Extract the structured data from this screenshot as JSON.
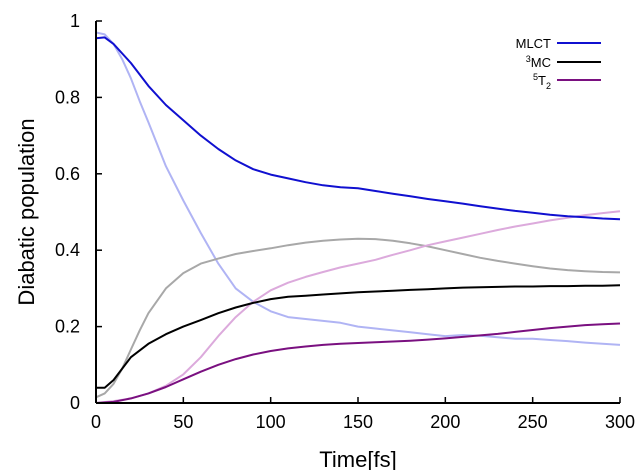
{
  "chart_data": {
    "type": "line",
    "xlabel": "Time[fs]",
    "ylabel": "Diabatic population",
    "xlim": [
      0,
      300
    ],
    "ylim": [
      0,
      1
    ],
    "xticks": [
      0,
      50,
      100,
      150,
      200,
      250,
      300
    ],
    "yticks": [
      0,
      0.2,
      0.4,
      0.6,
      0.8,
      1
    ],
    "ytick_labels": [
      "0",
      "0.2",
      "0.4",
      "0.6",
      "0.8",
      "1"
    ],
    "grid": false,
    "legend_position": "top-right",
    "legend": [
      {
        "main": "MLCT",
        "sup": "",
        "sub": "",
        "color": "#1010d0"
      },
      {
        "main": "MC",
        "sup": "3",
        "sub": "",
        "color": "#000000"
      },
      {
        "main": "T",
        "sup": "5",
        "sub": "2",
        "color": "#7a1080"
      }
    ],
    "series": [
      {
        "color": "#1010d0",
        "width": 2,
        "x": [
          0,
          5,
          10,
          20,
          30,
          40,
          50,
          60,
          70,
          80,
          90,
          100,
          110,
          120,
          130,
          140,
          150,
          160,
          170,
          180,
          190,
          200,
          210,
          220,
          230,
          240,
          250,
          260,
          270,
          280,
          290,
          300
        ],
        "y": [
          0.955,
          0.957,
          0.94,
          0.89,
          0.83,
          0.78,
          0.74,
          0.7,
          0.665,
          0.635,
          0.612,
          0.598,
          0.588,
          0.578,
          0.57,
          0.565,
          0.562,
          0.555,
          0.548,
          0.541,
          0.534,
          0.528,
          0.522,
          0.515,
          0.509,
          0.503,
          0.498,
          0.493,
          0.489,
          0.486,
          0.483,
          0.481
        ]
      },
      {
        "color": "#000000",
        "width": 2,
        "x": [
          0,
          5,
          10,
          15,
          20,
          30,
          40,
          50,
          60,
          70,
          80,
          90,
          100,
          110,
          120,
          130,
          140,
          150,
          160,
          170,
          180,
          190,
          200,
          210,
          220,
          230,
          240,
          250,
          260,
          270,
          280,
          290,
          300
        ],
        "y": [
          0.04,
          0.04,
          0.06,
          0.09,
          0.12,
          0.155,
          0.18,
          0.2,
          0.217,
          0.235,
          0.25,
          0.262,
          0.272,
          0.278,
          0.281,
          0.284,
          0.287,
          0.29,
          0.292,
          0.294,
          0.296,
          0.298,
          0.3,
          0.302,
          0.303,
          0.304,
          0.305,
          0.305,
          0.306,
          0.306,
          0.307,
          0.307,
          0.308
        ]
      },
      {
        "color": "#7a1080",
        "width": 2,
        "x": [
          0,
          10,
          20,
          30,
          40,
          50,
          60,
          70,
          80,
          90,
          100,
          110,
          120,
          130,
          140,
          150,
          160,
          170,
          180,
          190,
          200,
          210,
          220,
          230,
          240,
          250,
          260,
          270,
          280,
          290,
          300
        ],
        "y": [
          0.0,
          0.003,
          0.012,
          0.025,
          0.042,
          0.062,
          0.082,
          0.1,
          0.115,
          0.127,
          0.136,
          0.143,
          0.148,
          0.152,
          0.155,
          0.157,
          0.159,
          0.161,
          0.163,
          0.166,
          0.169,
          0.173,
          0.177,
          0.181,
          0.186,
          0.191,
          0.196,
          0.2,
          0.204,
          0.206,
          0.208
        ]
      },
      {
        "color": "#b0b4f4",
        "width": 2,
        "x": [
          0,
          5,
          10,
          15,
          20,
          25,
          30,
          40,
          50,
          60,
          70,
          80,
          90,
          100,
          110,
          120,
          130,
          140,
          150,
          160,
          170,
          180,
          190,
          200,
          210,
          220,
          230,
          240,
          250,
          260,
          270,
          280,
          290,
          300
        ],
        "y": [
          0.97,
          0.965,
          0.94,
          0.9,
          0.85,
          0.79,
          0.735,
          0.62,
          0.53,
          0.445,
          0.365,
          0.3,
          0.265,
          0.24,
          0.225,
          0.22,
          0.215,
          0.21,
          0.2,
          0.195,
          0.19,
          0.185,
          0.18,
          0.175,
          0.178,
          0.176,
          0.172,
          0.168,
          0.168,
          0.165,
          0.162,
          0.158,
          0.155,
          0.152
        ]
      },
      {
        "color": "#a8a8a8",
        "width": 2,
        "x": [
          0,
          5,
          10,
          15,
          20,
          25,
          30,
          40,
          50,
          60,
          70,
          80,
          90,
          100,
          110,
          120,
          130,
          140,
          150,
          160,
          170,
          180,
          190,
          200,
          210,
          220,
          230,
          240,
          250,
          260,
          270,
          280,
          290,
          300
        ],
        "y": [
          0.015,
          0.025,
          0.05,
          0.09,
          0.14,
          0.19,
          0.235,
          0.3,
          0.34,
          0.365,
          0.378,
          0.39,
          0.398,
          0.405,
          0.413,
          0.42,
          0.425,
          0.428,
          0.43,
          0.429,
          0.425,
          0.418,
          0.41,
          0.4,
          0.39,
          0.38,
          0.372,
          0.365,
          0.358,
          0.352,
          0.348,
          0.345,
          0.343,
          0.342
        ]
      },
      {
        "color": "#dcaadc",
        "width": 2,
        "x": [
          0,
          10,
          20,
          30,
          40,
          50,
          60,
          70,
          80,
          90,
          100,
          110,
          120,
          130,
          140,
          150,
          160,
          170,
          180,
          190,
          200,
          210,
          220,
          230,
          240,
          250,
          260,
          270,
          280,
          290,
          300
        ],
        "y": [
          0.0,
          0.005,
          0.012,
          0.025,
          0.045,
          0.075,
          0.12,
          0.175,
          0.225,
          0.265,
          0.295,
          0.315,
          0.33,
          0.343,
          0.355,
          0.365,
          0.375,
          0.388,
          0.4,
          0.413,
          0.423,
          0.433,
          0.443,
          0.453,
          0.462,
          0.47,
          0.478,
          0.485,
          0.492,
          0.497,
          0.502
        ]
      }
    ]
  }
}
